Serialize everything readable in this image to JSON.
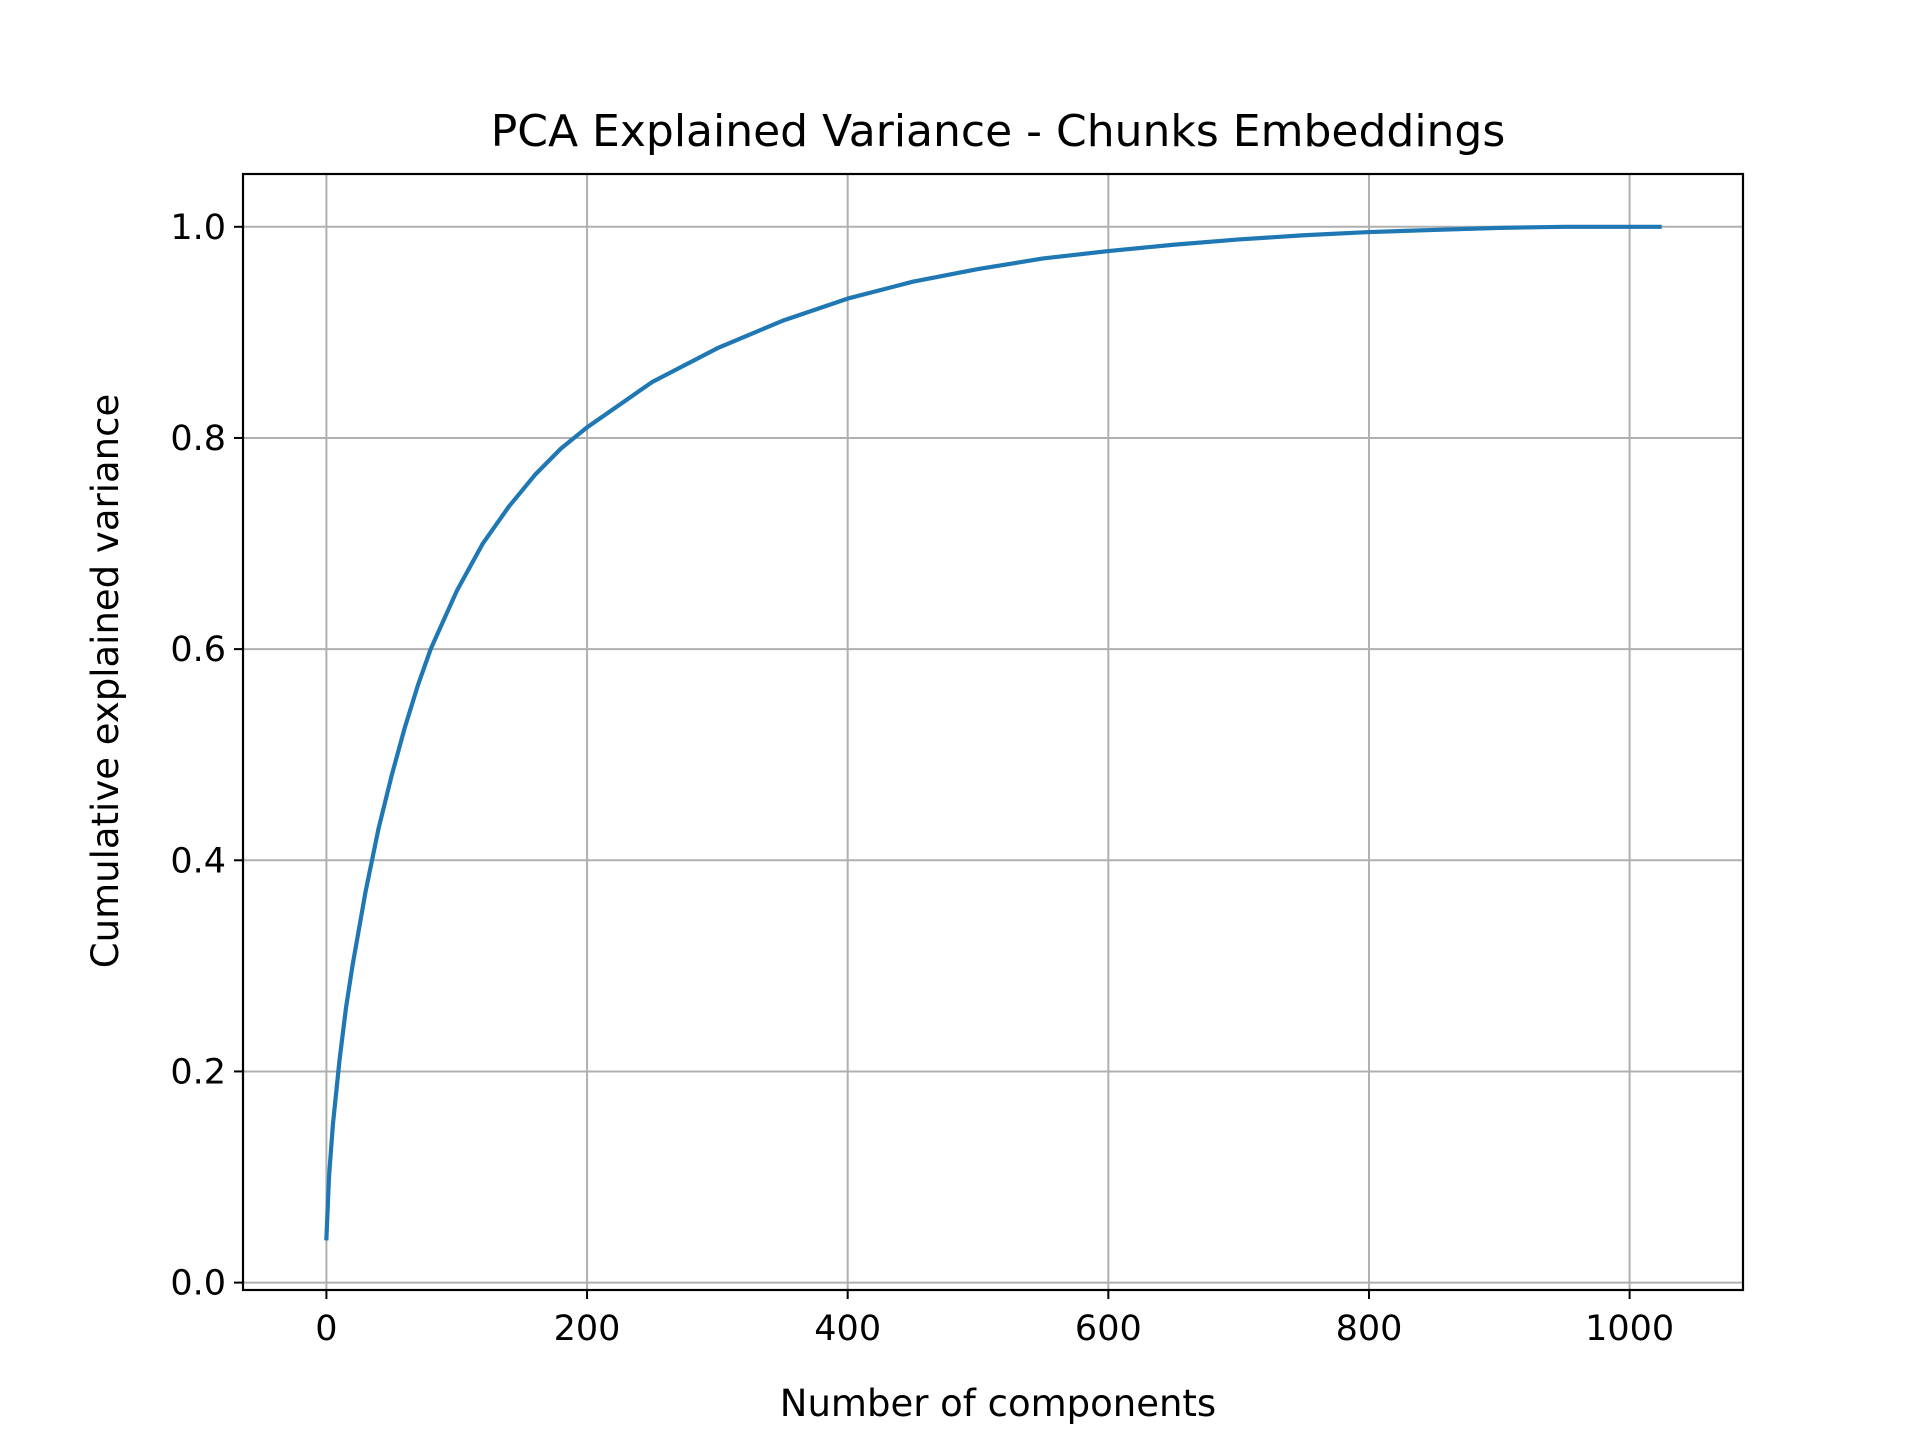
{
  "chart_data": {
    "type": "line",
    "title": "PCA Explained Variance - Chunks Embeddings",
    "xlabel": "Number of components",
    "ylabel": "Cumulative explained variance",
    "xlim": [
      -64,
      1087
    ],
    "ylim": [
      -0.007,
      1.05
    ],
    "x_ticks": [
      0,
      200,
      400,
      600,
      800,
      1000
    ],
    "x_tick_labels": [
      "0",
      "200",
      "400",
      "600",
      "800",
      "1000"
    ],
    "y_ticks": [
      0.0,
      0.2,
      0.4,
      0.6,
      0.8,
      1.0
    ],
    "y_tick_labels": [
      "0.0",
      "0.2",
      "0.4",
      "0.6",
      "0.8",
      "1.0"
    ],
    "grid": true,
    "legend": "none",
    "series": [
      {
        "color": "#1f77b4",
        "x": [
          0,
          2,
          5,
          10,
          15,
          20,
          30,
          40,
          50,
          60,
          70,
          80,
          100,
          120,
          140,
          160,
          180,
          200,
          250,
          300,
          350,
          400,
          450,
          500,
          550,
          600,
          650,
          700,
          750,
          800,
          850,
          900,
          950,
          1000,
          1023
        ],
        "y": [
          0.042,
          0.1,
          0.15,
          0.21,
          0.26,
          0.3,
          0.37,
          0.43,
          0.48,
          0.525,
          0.565,
          0.6,
          0.655,
          0.7,
          0.735,
          0.765,
          0.79,
          0.81,
          0.853,
          0.885,
          0.911,
          0.932,
          0.948,
          0.96,
          0.97,
          0.977,
          0.983,
          0.988,
          0.992,
          0.995,
          0.997,
          0.999,
          1.0,
          1.0,
          1.0
        ]
      }
    ]
  }
}
